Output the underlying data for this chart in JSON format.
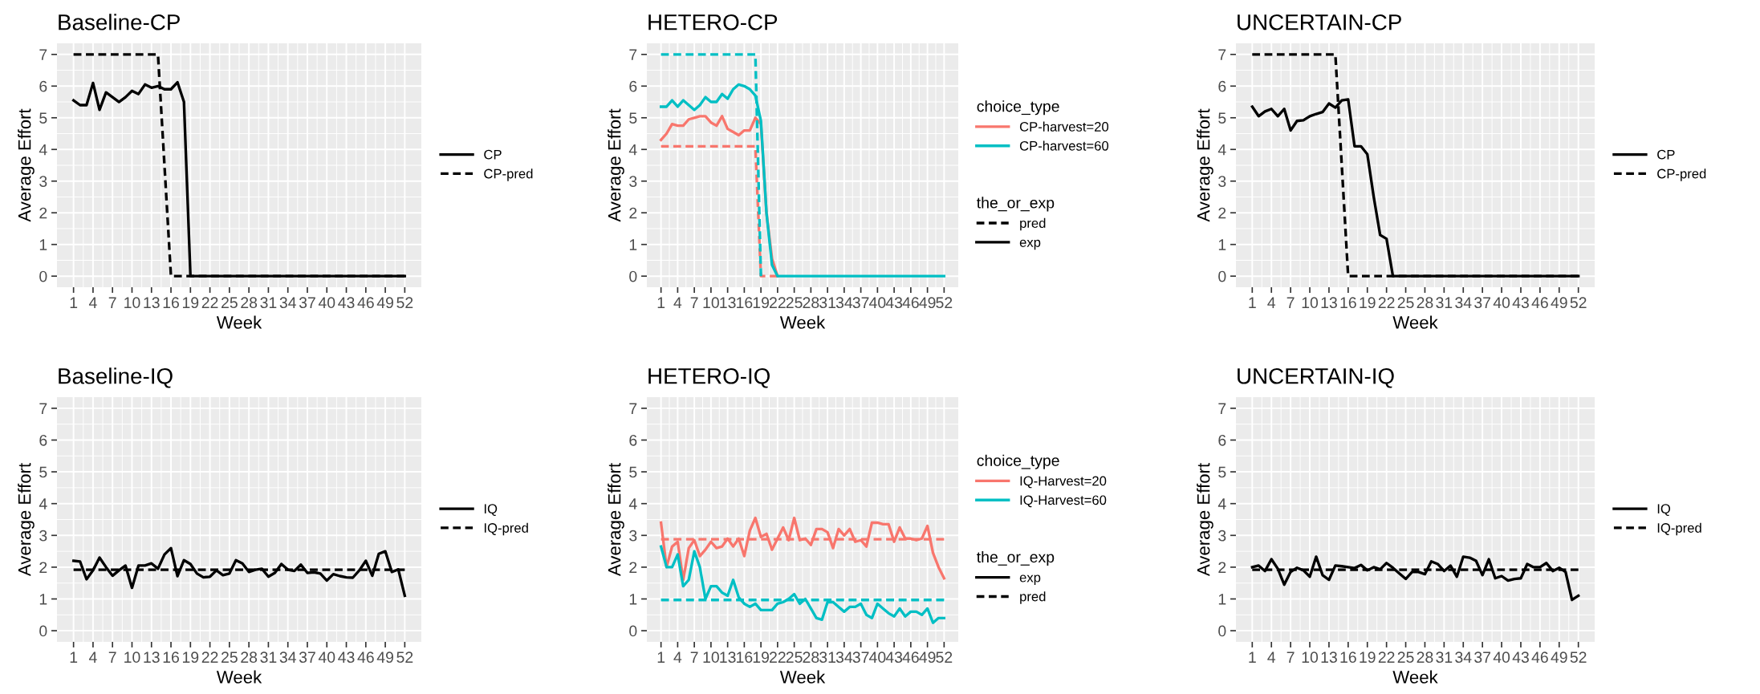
{
  "chart_data": [
    {
      "type": "line",
      "title": "Baseline-CP",
      "xlabel": "Week",
      "ylabel": "Average Effort",
      "legend": "right",
      "grid": true,
      "x": [
        1,
        2,
        3,
        4,
        5,
        6,
        7,
        8,
        9,
        10,
        11,
        12,
        13,
        14,
        15,
        16,
        17,
        18,
        19,
        20,
        21,
        22,
        23,
        24,
        25,
        26,
        27,
        28,
        29,
        30,
        31,
        32,
        33,
        34,
        35,
        36,
        37,
        38,
        39,
        40,
        41,
        42,
        43,
        44,
        45,
        46,
        47,
        48,
        49,
        50,
        51,
        52
      ],
      "xlim": [
        -1.55,
        54.55
      ],
      "xticks": [
        1,
        4,
        7,
        10,
        13,
        16,
        19,
        22,
        25,
        28,
        31,
        34,
        37,
        40,
        43,
        46,
        49,
        52
      ],
      "ylim": [
        -0.35,
        7.35
      ],
      "yticks": [
        0,
        1,
        2,
        3,
        4,
        5,
        6,
        7
      ],
      "series": [
        {
          "name": "CP",
          "color": "#000000",
          "line_style": "solid",
          "values": [
            5.55,
            5.4,
            5.4,
            6.1,
            5.25,
            5.8,
            5.65,
            5.5,
            5.65,
            5.85,
            5.75,
            6.05,
            5.95,
            6.0,
            5.9,
            5.9,
            6.12,
            5.5,
            0,
            0,
            0,
            0,
            0,
            0,
            0,
            0,
            0,
            0,
            0,
            0,
            0,
            0,
            0,
            0,
            0,
            0,
            0,
            0,
            0,
            0,
            0,
            0,
            0,
            0,
            0,
            0,
            0,
            0,
            0,
            0,
            0,
            0
          ]
        },
        {
          "name": "CP-pred",
          "color": "#000000",
          "line_style": "dashed",
          "values": [
            7,
            7,
            7,
            7,
            7,
            7,
            7,
            7,
            7,
            7,
            7,
            7,
            7,
            7,
            3.5,
            0,
            0,
            0,
            0,
            0,
            0,
            0,
            0,
            0,
            0,
            0,
            0,
            0,
            0,
            0,
            0,
            0,
            0,
            0,
            0,
            0,
            0,
            0,
            0,
            0,
            0,
            0,
            0,
            0,
            0,
            0,
            0,
            0,
            0,
            0,
            0,
            0
          ]
        }
      ]
    },
    {
      "type": "line",
      "title": "HETERO-CP",
      "xlabel": "Week",
      "ylabel": "Average Effort",
      "legend": "right",
      "grid": true,
      "legend_title": "choice_type",
      "annotations": [
        "the_or_exp",
        "pred",
        "exp"
      ],
      "x": [
        1,
        2,
        3,
        4,
        5,
        6,
        7,
        8,
        9,
        10,
        11,
        12,
        13,
        14,
        15,
        16,
        17,
        18,
        19,
        20,
        21,
        22,
        23,
        24,
        25,
        26,
        27,
        28,
        29,
        30,
        31,
        32,
        33,
        34,
        35,
        36,
        37,
        38,
        39,
        40,
        41,
        42,
        43,
        44,
        45,
        46,
        47,
        48,
        49,
        50,
        51,
        52
      ],
      "xlim": [
        -1.55,
        54.55
      ],
      "xticks": [
        1,
        4,
        7,
        10,
        13,
        16,
        19,
        22,
        25,
        28,
        31,
        34,
        37,
        40,
        43,
        46,
        49,
        52
      ],
      "ylim": [
        -0.35,
        7.35
      ],
      "yticks": [
        0,
        1,
        2,
        3,
        4,
        5,
        6,
        7
      ],
      "series": [
        {
          "name": "CP-harvest=20",
          "color": "#f8766d",
          "line_style": "dashed",
          "values": [
            4.1,
            4.1,
            4.1,
            4.1,
            4.1,
            4.1,
            4.1,
            4.1,
            4.1,
            4.1,
            4.1,
            4.1,
            4.1,
            4.1,
            4.1,
            4.1,
            4.1,
            4.1,
            0,
            0,
            0,
            0,
            null,
            null,
            null,
            null,
            null,
            null,
            null,
            null,
            null,
            null,
            null,
            null,
            null,
            null,
            null,
            null,
            null,
            null,
            null,
            null,
            null,
            null,
            null,
            null,
            null,
            null,
            null,
            null,
            null,
            null
          ]
        },
        {
          "color": "#f8766d",
          "line_style": "solid",
          "values": [
            4.3,
            4.5,
            4.8,
            4.75,
            4.75,
            4.95,
            5.0,
            5.05,
            5.05,
            4.85,
            4.75,
            5.05,
            4.65,
            4.55,
            4.45,
            4.6,
            4.6,
            5.0,
            4.8,
            2.0,
            0.55,
            0,
            null,
            null,
            null,
            null,
            null,
            null,
            null,
            null,
            null,
            null,
            null,
            null,
            null,
            null,
            null,
            null,
            null,
            null,
            null,
            null,
            null,
            null,
            null,
            null,
            null,
            null,
            null,
            null,
            null,
            null
          ]
        },
        {
          "name": "CP-harvest=60",
          "color": "#00bfc4",
          "line_style": "dashed",
          "values": [
            7,
            7,
            7,
            7,
            7,
            7,
            7,
            7,
            7,
            7,
            7,
            7,
            7,
            7,
            7,
            7,
            7,
            7,
            0,
            null,
            null,
            null,
            null,
            null,
            null,
            null,
            null,
            null,
            null,
            null,
            null,
            null,
            null,
            null,
            null,
            null,
            null,
            null,
            null,
            null,
            null,
            null,
            null,
            null,
            null,
            null,
            null,
            null,
            null,
            null,
            null,
            null
          ]
        },
        {
          "color": "#00bfc4",
          "line_style": "solid",
          "values": [
            5.35,
            5.35,
            5.55,
            5.35,
            5.55,
            5.4,
            5.25,
            5.4,
            5.65,
            5.5,
            5.5,
            5.75,
            5.6,
            5.9,
            6.05,
            6.0,
            5.9,
            5.7,
            4.9,
            2.0,
            0.35,
            0,
            0,
            0,
            0,
            0,
            0,
            0,
            0,
            0,
            0,
            0,
            0,
            0,
            0,
            0,
            0,
            0,
            0,
            0,
            0,
            0,
            0,
            0,
            0,
            0,
            0,
            0,
            0,
            0,
            0,
            0
          ]
        }
      ]
    },
    {
      "type": "line",
      "title": "UNCERTAIN-CP",
      "xlabel": "Week",
      "ylabel": "Average Effort",
      "legend": "right",
      "grid": true,
      "x": [
        1,
        2,
        3,
        4,
        5,
        6,
        7,
        8,
        9,
        10,
        11,
        12,
        13,
        14,
        15,
        16,
        17,
        18,
        19,
        20,
        21,
        22,
        23,
        24,
        25,
        26,
        27,
        28,
        29,
        30,
        31,
        32,
        33,
        34,
        35,
        36,
        37,
        38,
        39,
        40,
        41,
        42,
        43,
        44,
        45,
        46,
        47,
        48,
        49,
        50,
        51,
        52
      ],
      "xlim": [
        -1.55,
        54.55
      ],
      "xticks": [
        1,
        4,
        7,
        10,
        13,
        16,
        19,
        22,
        25,
        28,
        31,
        34,
        37,
        40,
        43,
        46,
        49,
        52
      ],
      "ylim": [
        -0.35,
        7.35
      ],
      "yticks": [
        0,
        1,
        2,
        3,
        4,
        5,
        6,
        7
      ],
      "series": [
        {
          "name": "CP",
          "color": "#000000",
          "line_style": "solid",
          "values": [
            5.35,
            5.05,
            5.2,
            5.28,
            5.05,
            5.28,
            4.6,
            4.9,
            4.92,
            5.05,
            5.12,
            5.18,
            5.45,
            5.32,
            5.55,
            5.58,
            4.1,
            4.1,
            3.85,
            2.5,
            1.3,
            1.18,
            0,
            0,
            0,
            0,
            0,
            0,
            0,
            0,
            0,
            0,
            0,
            0,
            0,
            0,
            0,
            0,
            0,
            0,
            0,
            0,
            0,
            0,
            0,
            0,
            0,
            0,
            0,
            0,
            0,
            0
          ]
        },
        {
          "name": "CP-pred",
          "color": "#000000",
          "line_style": "dashed",
          "values": [
            7,
            7,
            7,
            7,
            7,
            7,
            7,
            7,
            7,
            7,
            7,
            7,
            7,
            7,
            3.5,
            0,
            0,
            0,
            0,
            0,
            0,
            0,
            0,
            0,
            0,
            0,
            0,
            0,
            0,
            0,
            0,
            0,
            0,
            0,
            0,
            0,
            0,
            0,
            0,
            0,
            0,
            0,
            0,
            0,
            0,
            0,
            0,
            0,
            0,
            0,
            0,
            0
          ]
        }
      ]
    },
    {
      "type": "line",
      "title": "Baseline-IQ",
      "xlabel": "Week",
      "ylabel": "Average Effort",
      "legend": "right",
      "grid": true,
      "x": [
        1,
        2,
        3,
        4,
        5,
        6,
        7,
        8,
        9,
        10,
        11,
        12,
        13,
        14,
        15,
        16,
        17,
        18,
        19,
        20,
        21,
        22,
        23,
        24,
        25,
        26,
        27,
        28,
        29,
        30,
        31,
        32,
        33,
        34,
        35,
        36,
        37,
        38,
        39,
        40,
        41,
        42,
        43,
        44,
        45,
        46,
        47,
        48,
        49,
        50,
        51,
        52
      ],
      "xlim": [
        -1.55,
        54.55
      ],
      "xticks": [
        1,
        4,
        7,
        10,
        13,
        16,
        19,
        22,
        25,
        28,
        31,
        34,
        37,
        40,
        43,
        46,
        49,
        52
      ],
      "ylim": [
        -0.35,
        7.35
      ],
      "yticks": [
        0,
        1,
        2,
        3,
        4,
        5,
        6,
        7
      ],
      "series": [
        {
          "name": "IQ",
          "color": "#000000",
          "line_style": "solid",
          "values": [
            2.2,
            2.18,
            1.62,
            1.9,
            2.3,
            2.0,
            1.73,
            1.9,
            2.05,
            1.35,
            2.05,
            2.05,
            2.12,
            1.95,
            2.4,
            2.6,
            1.72,
            2.22,
            2.1,
            1.8,
            1.68,
            1.7,
            1.9,
            1.75,
            1.8,
            2.22,
            2.12,
            1.85,
            1.92,
            1.95,
            1.7,
            1.82,
            2.1,
            1.92,
            1.88,
            2.08,
            1.82,
            1.84,
            1.8,
            1.58,
            1.78,
            1.72,
            1.68,
            1.67,
            1.9,
            2.2,
            1.73,
            2.42,
            2.5,
            1.85,
            1.93,
            1.1
          ]
        },
        {
          "name": "IQ-pred",
          "color": "#000000",
          "line_style": "dashed",
          "values": [
            1.92,
            1.92,
            1.92,
            1.92,
            1.92,
            1.92,
            1.92,
            1.92,
            1.92,
            1.92,
            1.92,
            1.92,
            1.92,
            1.92,
            1.92,
            1.92,
            1.92,
            1.92,
            1.92,
            1.92,
            1.92,
            1.92,
            1.92,
            1.92,
            1.92,
            1.92,
            1.92,
            1.92,
            1.92,
            1.92,
            1.92,
            1.92,
            1.92,
            1.92,
            1.92,
            1.92,
            1.92,
            1.92,
            1.92,
            1.92,
            1.92,
            1.92,
            1.92,
            1.92,
            1.92,
            1.92,
            1.92,
            1.92,
            1.92,
            1.92,
            1.92,
            1.92
          ]
        }
      ]
    },
    {
      "type": "line",
      "title": "HETERO-IQ",
      "xlabel": "Week",
      "ylabel": "Average Effort",
      "legend": "right",
      "grid": true,
      "legend_title": "choice_type",
      "annotations": [
        "the_or_exp",
        "exp",
        "pred"
      ],
      "x": [
        1,
        2,
        3,
        4,
        5,
        6,
        7,
        8,
        9,
        10,
        11,
        12,
        13,
        14,
        15,
        16,
        17,
        18,
        19,
        20,
        21,
        22,
        23,
        24,
        25,
        26,
        27,
        28,
        29,
        30,
        31,
        32,
        33,
        34,
        35,
        36,
        37,
        38,
        39,
        40,
        41,
        42,
        43,
        44,
        45,
        46,
        47,
        48,
        49,
        50,
        51,
        52
      ],
      "xlim": [
        -1.55,
        54.55
      ],
      "xticks": [
        1,
        4,
        7,
        10,
        13,
        16,
        19,
        22,
        25,
        28,
        31,
        34,
        37,
        40,
        43,
        46,
        49,
        52
      ],
      "ylim": [
        -0.35,
        7.35
      ],
      "yticks": [
        0,
        1,
        2,
        3,
        4,
        5,
        6,
        7
      ],
      "series": [
        {
          "name": "IQ-Harvest=20",
          "color": "#f8766d",
          "line_style": "solid",
          "values": [
            3.4,
            2.0,
            2.65,
            2.8,
            1.6,
            2.6,
            2.85,
            2.35,
            2.55,
            2.8,
            2.6,
            2.65,
            2.9,
            2.65,
            2.9,
            2.35,
            3.15,
            3.55,
            2.95,
            3.05,
            2.55,
            2.9,
            3.25,
            2.85,
            3.55,
            2.85,
            2.9,
            2.7,
            3.2,
            3.2,
            3.1,
            2.6,
            3.2,
            3.0,
            3.2,
            2.8,
            2.85,
            2.65,
            3.4,
            3.4,
            3.35,
            3.35,
            2.8,
            3.25,
            2.9,
            2.9,
            2.85,
            2.9,
            3.3,
            2.45,
            2.0,
            1.65
          ]
        },
        {
          "color": "#f8766d",
          "line_style": "dashed",
          "values": [
            2.88,
            2.88,
            2.88,
            2.88,
            2.88,
            2.88,
            2.88,
            2.88,
            2.88,
            2.88,
            2.88,
            2.88,
            2.88,
            2.88,
            2.88,
            2.88,
            2.88,
            2.88,
            2.88,
            2.88,
            2.88,
            2.88,
            2.88,
            2.88,
            2.88,
            2.88,
            2.88,
            2.88,
            2.88,
            2.88,
            2.88,
            2.88,
            2.88,
            2.88,
            2.88,
            2.88,
            2.88,
            2.88,
            2.88,
            2.88,
            2.88,
            2.88,
            2.88,
            2.88,
            2.88,
            2.88,
            2.88,
            2.88,
            2.88,
            2.88,
            2.88,
            2.88
          ]
        },
        {
          "name": "IQ-Harvest=60",
          "color": "#00bfc4",
          "line_style": "solid",
          "values": [
            2.65,
            2.0,
            2.0,
            2.4,
            1.4,
            1.6,
            2.5,
            2.0,
            1.0,
            1.4,
            1.4,
            1.2,
            1.1,
            1.6,
            1.05,
            0.85,
            0.75,
            0.85,
            0.65,
            0.65,
            0.65,
            0.85,
            0.9,
            1.0,
            1.15,
            0.85,
            1.0,
            0.7,
            0.4,
            0.35,
            0.9,
            0.9,
            0.75,
            0.6,
            0.75,
            0.75,
            0.85,
            0.5,
            0.4,
            0.85,
            0.7,
            0.55,
            0.45,
            0.7,
            0.45,
            0.6,
            0.6,
            0.5,
            0.7,
            0.25,
            0.4,
            0.4
          ]
        },
        {
          "color": "#00bfc4",
          "line_style": "dashed",
          "values": [
            0.97,
            0.97,
            0.97,
            0.97,
            0.97,
            0.97,
            0.97,
            0.97,
            0.97,
            0.97,
            0.97,
            0.97,
            0.97,
            0.97,
            0.97,
            0.97,
            0.97,
            0.97,
            0.97,
            0.97,
            0.97,
            0.97,
            0.97,
            0.97,
            0.97,
            0.97,
            0.97,
            0.97,
            0.97,
            0.97,
            0.97,
            0.97,
            0.97,
            0.97,
            0.97,
            0.97,
            0.97,
            0.97,
            0.97,
            0.97,
            0.97,
            0.97,
            0.97,
            0.97,
            0.97,
            0.97,
            0.97,
            0.97,
            0.97,
            0.97,
            0.97,
            0.97
          ]
        }
      ]
    },
    {
      "type": "line",
      "title": "UNCERTAIN-IQ",
      "xlabel": "Week",
      "ylabel": "Average Effort",
      "legend": "right",
      "grid": true,
      "x": [
        1,
        2,
        3,
        4,
        5,
        6,
        7,
        8,
        9,
        10,
        11,
        12,
        13,
        14,
        15,
        16,
        17,
        18,
        19,
        20,
        21,
        22,
        23,
        24,
        25,
        26,
        27,
        28,
        29,
        30,
        31,
        32,
        33,
        34,
        35,
        36,
        37,
        38,
        39,
        40,
        41,
        42,
        43,
        44,
        45,
        46,
        47,
        48,
        49,
        50,
        51,
        52
      ],
      "xlim": [
        -1.55,
        54.55
      ],
      "xticks": [
        1,
        4,
        7,
        10,
        13,
        16,
        19,
        22,
        25,
        28,
        31,
        34,
        37,
        40,
        43,
        46,
        49,
        52
      ],
      "ylim": [
        -0.35,
        7.35
      ],
      "yticks": [
        0,
        1,
        2,
        3,
        4,
        5,
        6,
        7
      ],
      "series": [
        {
          "name": "IQ",
          "color": "#000000",
          "line_style": "solid",
          "values": [
            2.0,
            2.05,
            1.88,
            2.25,
            1.95,
            1.45,
            1.85,
            1.98,
            1.9,
            1.7,
            2.33,
            1.75,
            1.6,
            2.05,
            2.03,
            2.0,
            1.97,
            2.07,
            1.9,
            2.0,
            1.93,
            2.13,
            1.98,
            1.8,
            1.63,
            1.85,
            1.85,
            1.78,
            2.18,
            2.1,
            1.88,
            2.05,
            1.7,
            2.33,
            2.3,
            2.2,
            1.75,
            2.25,
            1.65,
            1.72,
            1.58,
            1.63,
            1.65,
            2.1,
            2.0,
            2.0,
            2.13,
            1.88,
            1.98,
            1.85,
            0.97,
            1.1
          ]
        },
        {
          "name": "IQ-pred",
          "color": "#000000",
          "line_style": "dashed",
          "values": [
            1.92,
            1.92,
            1.92,
            1.92,
            1.92,
            1.92,
            1.92,
            1.92,
            1.92,
            1.92,
            1.92,
            1.92,
            1.92,
            1.92,
            1.92,
            1.92,
            1.92,
            1.92,
            1.92,
            1.92,
            1.92,
            1.92,
            1.92,
            1.92,
            1.92,
            1.92,
            1.92,
            1.92,
            1.92,
            1.92,
            1.92,
            1.92,
            1.92,
            1.92,
            1.92,
            1.92,
            1.92,
            1.92,
            1.92,
            1.92,
            1.92,
            1.92,
            1.92,
            1.92,
            1.92,
            1.92,
            1.92,
            1.92,
            1.92,
            1.92,
            1.92,
            1.92
          ]
        }
      ]
    }
  ]
}
